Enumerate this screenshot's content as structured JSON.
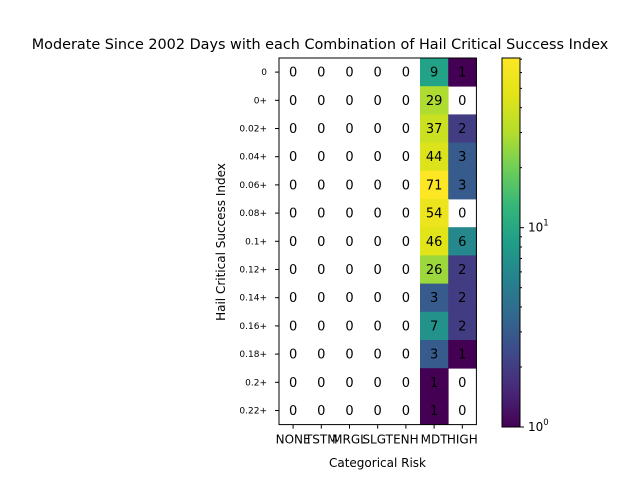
{
  "chart_data": {
    "type": "heatmap",
    "title": "Moderate Since 2002 Days with each Combination of Hail Critical Success Index",
    "xlabel": "Categorical Risk",
    "ylabel": "Hail Critical Success Index",
    "x_categories": [
      "NONE",
      "TSTM",
      "MRGL",
      "SLGT",
      "ENH",
      "MDT",
      "HIGH"
    ],
    "y_categories": [
      "0",
      "0+",
      "0.02+",
      "0.04+",
      "0.06+",
      "0.08+",
      "0.1+",
      "0.12+",
      "0.14+",
      "0.16+",
      "0.18+",
      "0.2+",
      "0.22+"
    ],
    "values": [
      [
        0,
        0,
        0,
        0,
        0,
        9,
        1
      ],
      [
        0,
        0,
        0,
        0,
        0,
        29,
        0
      ],
      [
        0,
        0,
        0,
        0,
        0,
        37,
        2
      ],
      [
        0,
        0,
        0,
        0,
        0,
        44,
        3
      ],
      [
        0,
        0,
        0,
        0,
        0,
        71,
        3
      ],
      [
        0,
        0,
        0,
        0,
        0,
        54,
        0
      ],
      [
        0,
        0,
        0,
        0,
        0,
        46,
        6
      ],
      [
        0,
        0,
        0,
        0,
        0,
        26,
        2
      ],
      [
        0,
        0,
        0,
        0,
        0,
        3,
        2
      ],
      [
        0,
        0,
        0,
        0,
        0,
        7,
        2
      ],
      [
        0,
        0,
        0,
        0,
        0,
        3,
        1
      ],
      [
        0,
        0,
        0,
        0,
        0,
        1,
        0
      ],
      [
        0,
        0,
        0,
        0,
        0,
        1,
        0
      ]
    ],
    "color_scale": "log",
    "colormap": "viridis",
    "clim": [
      1,
      71
    ],
    "colorbar_ticks": [
      {
        "value": 1,
        "label": "10^0"
      },
      {
        "value": 10,
        "label": "10^1"
      }
    ],
    "zero_color": "#ffffff",
    "grid": false
  }
}
